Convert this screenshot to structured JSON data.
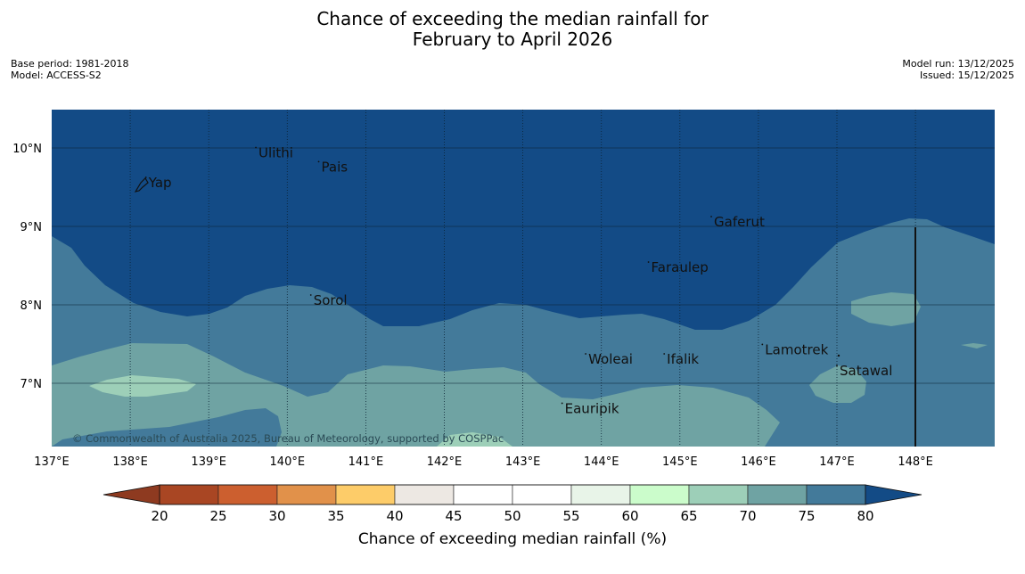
{
  "title": {
    "line1": "Chance of exceeding the median rainfall for",
    "line2": "February to April 2026"
  },
  "meta_left": {
    "base_period": "Base period: 1981-2018",
    "model": "Model: ACCESS-S2"
  },
  "meta_right": {
    "model_run": "Model run: 13/12/2025",
    "issued": "Issued: 15/12/2025"
  },
  "map": {
    "lon_range": [
      137,
      149
    ],
    "lat_range": [
      6.2,
      10.5
    ],
    "lon_ticks": [
      "137°E",
      "138°E",
      "139°E",
      "140°E",
      "141°E",
      "142°E",
      "143°E",
      "144°E",
      "145°E",
      "146°E",
      "147°E",
      "148°E"
    ],
    "lat_ticks": [
      "10°N",
      "9°N",
      "8°N",
      "7°N"
    ],
    "places": [
      {
        "name": "Yap",
        "lon": 138.2,
        "lat": 9.5
      },
      {
        "name": "Ulithi",
        "lon": 139.6,
        "lat": 9.88
      },
      {
        "name": "Pais",
        "lon": 140.4,
        "lat": 9.7
      },
      {
        "name": "Gaferut",
        "lon": 145.4,
        "lat": 9.0
      },
      {
        "name": "Faraulep",
        "lon": 144.6,
        "lat": 8.42
      },
      {
        "name": "Sorol",
        "lon": 140.3,
        "lat": 8.0
      },
      {
        "name": "Lamotrek",
        "lon": 146.05,
        "lat": 7.37
      },
      {
        "name": "Woleai",
        "lon": 143.8,
        "lat": 7.25
      },
      {
        "name": "Ifalik",
        "lon": 144.8,
        "lat": 7.25
      },
      {
        "name": "Satawal",
        "lon": 147.0,
        "lat": 7.1
      },
      {
        "name": "Eauripik",
        "lon": 143.5,
        "lat": 6.62
      }
    ],
    "copyright": "© Commonwealth of Australia 2025, Bureau of Meteorology, supported by COSPPac"
  },
  "colorbar": {
    "title": "Chance of exceeding median rainfall (%)",
    "ticks": [
      "20",
      "25",
      "30",
      "35",
      "40",
      "45",
      "50",
      "55",
      "60",
      "65",
      "70",
      "75",
      "80"
    ],
    "colors": [
      "#a94623",
      "#cc5f2f",
      "#e1914a",
      "#fdcc69",
      "#ede8e3",
      "#ffffff",
      "#ffffff",
      "#e8f4e8",
      "#cbfccb",
      "#9dcfb8",
      "#6fa3a3",
      "#437a9a"
    ],
    "under_color": "#8e3a20",
    "over_color": "#134b86"
  },
  "colors": {
    "band_80": "#134b86",
    "band_75": "#437a9a",
    "band_70": "#6fa3a3",
    "band_65": "#9dcfb8"
  }
}
